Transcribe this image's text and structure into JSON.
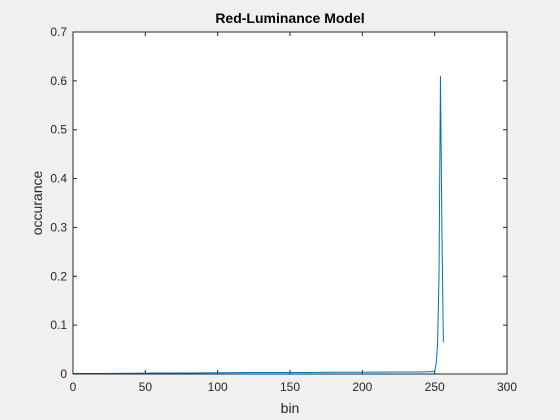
{
  "chart_data": {
    "type": "line",
    "title": "Red-Luminance Model",
    "xlabel": "bin",
    "ylabel": "occurance",
    "xlim": [
      0,
      300
    ],
    "ylim": [
      0,
      0.7
    ],
    "xticks": [
      0,
      50,
      100,
      150,
      200,
      250,
      300
    ],
    "yticks": [
      0,
      0.1,
      0.2,
      0.3,
      0.4,
      0.5,
      0.6,
      0.7
    ],
    "grid": false,
    "series": [
      {
        "color": "#0072bd",
        "x": [
          0,
          20,
          40,
          60,
          80,
          100,
          120,
          140,
          160,
          180,
          200,
          220,
          240,
          250,
          251,
          252,
          253,
          254,
          255,
          256
        ],
        "y": [
          0.001,
          0.001,
          0.0015,
          0.002,
          0.002,
          0.0025,
          0.003,
          0.003,
          0.003,
          0.0035,
          0.0035,
          0.004,
          0.004,
          0.005,
          0.02,
          0.06,
          0.2,
          0.61,
          0.3,
          0.065
        ]
      }
    ]
  }
}
